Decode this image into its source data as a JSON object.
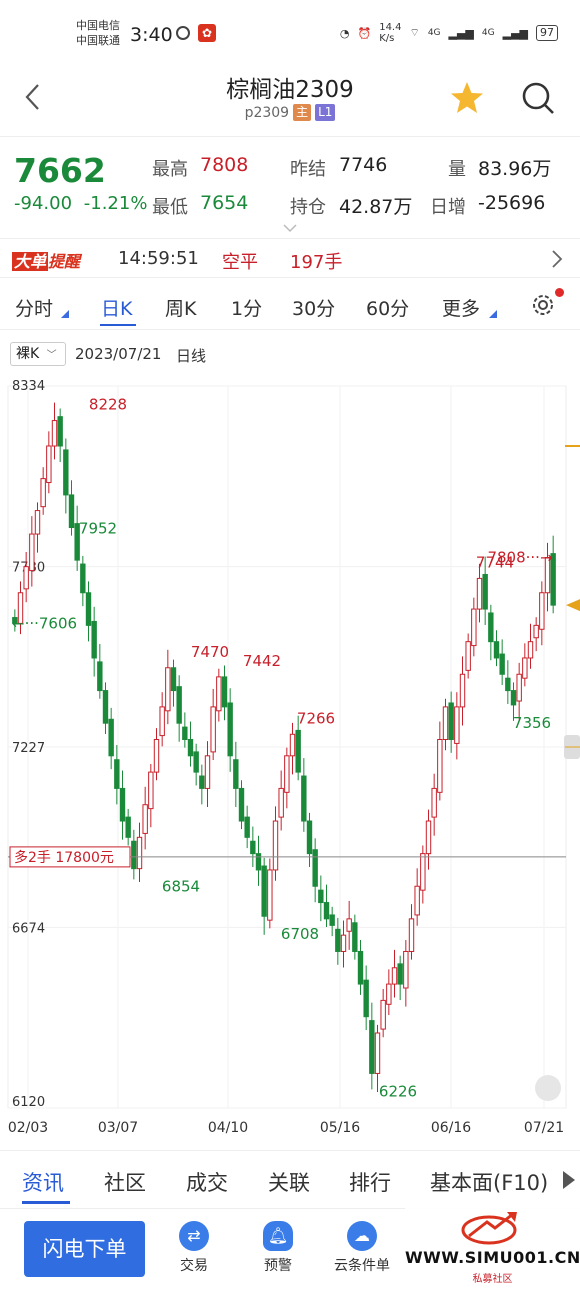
{
  "status": {
    "carrier1": "中国电信",
    "carrier2": "中国联通",
    "time": "3:40",
    "speed_top": "14.4",
    "speed_bottom": "K/s",
    "net1": "4G",
    "net2": "4G",
    "battery": "97"
  },
  "nav": {
    "title": "棕榈油2309",
    "code": "p2309",
    "tag_main": "主",
    "tag_l1": "L1"
  },
  "quote": {
    "price": "7662",
    "change": "-94.00",
    "change_pct": "-1.21%",
    "high_label": "最高",
    "high_value": "7808",
    "low_label": "最低",
    "low_value": "7654",
    "prev_label": "昨结",
    "prev_value": "7746",
    "oi_label": "持仓",
    "oi_value": "42.87万",
    "vol_label": "量",
    "vol_value": "83.96万",
    "daily_label": "日增",
    "daily_value": "-25696"
  },
  "alert": {
    "brand1": "大单",
    "brand2": "提醒",
    "time": "14:59:51",
    "action": "空平",
    "amount": "197手"
  },
  "period_tabs": [
    "分时",
    "日K",
    "周K",
    "1分",
    "30分",
    "60分",
    "更多"
  ],
  "chart_header": {
    "kline_type": "裸K",
    "date": "2023/07/21",
    "period": "日线"
  },
  "position_label": "多2手  17800元",
  "chart_data": {
    "type": "candlestick",
    "title": "",
    "xlabel": "",
    "ylabel": "",
    "ylim": [
      6120,
      8334
    ],
    "y_ticks": [
      "8334",
      "7780",
      "7227",
      "6674",
      "6120"
    ],
    "x_ticks": [
      "02/03",
      "03/07",
      "04/10",
      "05/16",
      "06/16",
      "07/21"
    ],
    "annotations": [
      {
        "label": "8228",
        "value": 8228,
        "kind": "high"
      },
      {
        "label": "7952",
        "value": 7952,
        "kind": "low"
      },
      {
        "label": "7606",
        "value": 7606,
        "kind": "start"
      },
      {
        "label": "7470",
        "value": 7470,
        "kind": "high"
      },
      {
        "label": "7442",
        "value": 7442,
        "kind": "high"
      },
      {
        "label": "7266",
        "value": 7266,
        "kind": "high"
      },
      {
        "label": "6854",
        "value": 6854,
        "kind": "low"
      },
      {
        "label": "6708",
        "value": 6708,
        "kind": "low"
      },
      {
        "label": "6226",
        "value": 6226,
        "kind": "low"
      },
      {
        "label": "7744",
        "value": 7744,
        "kind": "high"
      },
      {
        "label": "7808",
        "value": 7808,
        "kind": "high"
      },
      {
        "label": "7356",
        "value": 7356,
        "kind": "low"
      }
    ],
    "position_line_value": 6890,
    "close_path": [
      7606,
      7700,
      7780,
      7880,
      7952,
      8050,
      8150,
      8228,
      8150,
      8000,
      7900,
      7800,
      7700,
      7600,
      7500,
      7400,
      7300,
      7200,
      7100,
      7000,
      6950,
      6854,
      6950,
      7050,
      7150,
      7250,
      7350,
      7470,
      7400,
      7300,
      7250,
      7200,
      7150,
      7100,
      7200,
      7350,
      7442,
      7350,
      7200,
      7100,
      7000,
      6950,
      6900,
      6850,
      6708,
      6850,
      7000,
      7100,
      7200,
      7266,
      7150,
      7000,
      6900,
      6800,
      6750,
      6700,
      6680,
      6600,
      6650,
      6700,
      6600,
      6500,
      6400,
      6226,
      6350,
      6450,
      6500,
      6550,
      6500,
      6600,
      6700,
      6800,
      6900,
      7000,
      7100,
      7250,
      7350,
      7250,
      7350,
      7450,
      7550,
      7650,
      7744,
      7650,
      7550,
      7500,
      7450,
      7400,
      7356,
      7450,
      7500,
      7550,
      7600,
      7700,
      7808,
      7662
    ]
  },
  "bottom_tabs": [
    "资讯",
    "社区",
    "成交",
    "关联",
    "排行",
    "基本面(F10)"
  ],
  "bottom_bar": {
    "flash_order": "闪电下单",
    "trade": "交易",
    "alert": "预警",
    "cloud": "云条件单"
  },
  "watermark": {
    "site": "WWW.SIMU001.CN",
    "name": "私募社区"
  },
  "colors": {
    "up": "#c8202a",
    "down": "#1a8a3a",
    "accent": "#2a5bd7"
  }
}
